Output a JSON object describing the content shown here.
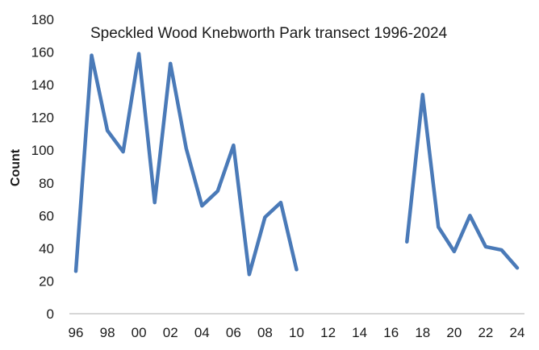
{
  "chart_data": {
    "type": "line",
    "title": "Speckled Wood Knebworth Park transect 1996-2024",
    "xlabel": "",
    "ylabel": "Count",
    "ylim": [
      0,
      180
    ],
    "yticks": [
      0,
      20,
      40,
      60,
      80,
      100,
      120,
      140,
      160,
      180
    ],
    "xlim": [
      1996,
      2024
    ],
    "xticks": [
      {
        "year": 1996,
        "label": "96"
      },
      {
        "year": 1998,
        "label": "98"
      },
      {
        "year": 2000,
        "label": "00"
      },
      {
        "year": 2002,
        "label": "02"
      },
      {
        "year": 2004,
        "label": "04"
      },
      {
        "year": 2006,
        "label": "06"
      },
      {
        "year": 2008,
        "label": "08"
      },
      {
        "year": 2010,
        "label": "10"
      },
      {
        "year": 2012,
        "label": "12"
      },
      {
        "year": 2014,
        "label": "14"
      },
      {
        "year": 2016,
        "label": "16"
      },
      {
        "year": 2018,
        "label": "18"
      },
      {
        "year": 2020,
        "label": "20"
      },
      {
        "year": 2022,
        "label": "22"
      },
      {
        "year": 2024,
        "label": "24"
      }
    ],
    "grid": false,
    "legend": "none",
    "series": [
      {
        "color": "#4a7ab8",
        "points": [
          [
            1996,
            26
          ],
          [
            1997,
            158
          ],
          [
            1998,
            112
          ],
          [
            1999,
            99
          ],
          [
            2000,
            159
          ],
          [
            2001,
            68
          ],
          [
            2002,
            153
          ],
          [
            2003,
            101
          ],
          [
            2004,
            66
          ],
          [
            2005,
            75
          ],
          [
            2006,
            103
          ],
          [
            2007,
            24
          ],
          [
            2008,
            59
          ],
          [
            2009,
            68
          ],
          [
            2010,
            27
          ],
          [
            2011,
            null
          ],
          [
            2012,
            null
          ],
          [
            2013,
            null
          ],
          [
            2014,
            null
          ],
          [
            2015,
            null
          ],
          [
            2016,
            null
          ],
          [
            2017,
            44
          ],
          [
            2018,
            134
          ],
          [
            2019,
            53
          ],
          [
            2020,
            38
          ],
          [
            2021,
            60
          ],
          [
            2022,
            41
          ],
          [
            2023,
            39
          ],
          [
            2024,
            28
          ]
        ]
      }
    ],
    "axis_color": "#bfbfbf"
  }
}
